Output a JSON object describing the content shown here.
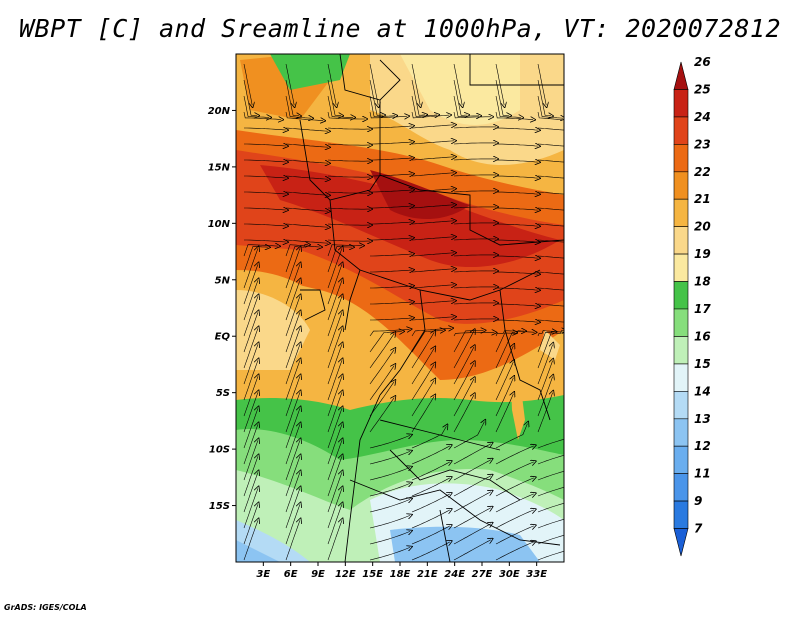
{
  "title": "WBPT [C] and Sreamline at 1000hPa, VT: 2020072812",
  "credit": "GrADS: IGES/COLA",
  "map": {
    "lat_ticks": [
      "20N",
      "15N",
      "10N",
      "5N",
      "EQ",
      "5S",
      "10S",
      "15S"
    ],
    "lon_ticks": [
      "3E",
      "6E",
      "9E",
      "12E",
      "15E",
      "18E",
      "21E",
      "24E",
      "27E",
      "30E",
      "33E"
    ],
    "lat_range": [
      -20,
      25
    ],
    "lon_range": [
      0,
      35
    ],
    "variable": "WBPT [C]",
    "level": "1000hPa",
    "valid_time": "2020072812"
  },
  "colorbar": {
    "labels": [
      "7",
      "9",
      "11",
      "12",
      "13",
      "14",
      "15",
      "16",
      "17",
      "18",
      "19",
      "20",
      "21",
      "22",
      "23",
      "24",
      "25",
      "26"
    ],
    "colors": [
      "#1a5fd6",
      "#2a7ae0",
      "#4a95ea",
      "#6aaeef",
      "#8cc4f2",
      "#b4dbf5",
      "#e2f4f8",
      "#bff0b8",
      "#86de7c",
      "#45c348",
      "#fbe9a0",
      "#fad88a",
      "#f5b542",
      "#f09020",
      "#ec6a14",
      "#e0441a",
      "#c82215",
      "#a51010"
    ]
  }
}
